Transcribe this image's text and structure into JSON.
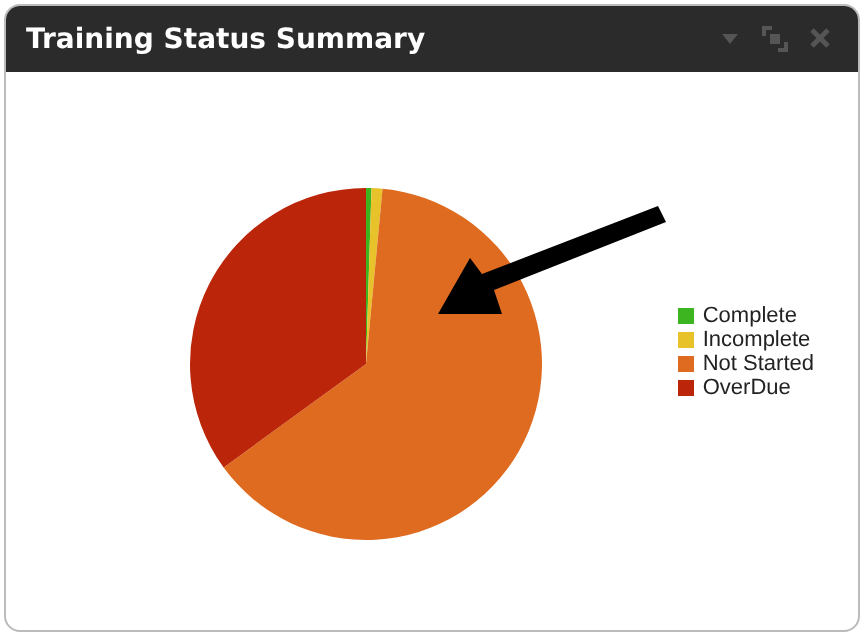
{
  "chart_data": {
    "type": "pie",
    "title": "Training Status Summary",
    "categories": [
      "Complete",
      "Incomplete",
      "Not Started",
      "OverDue"
    ],
    "values": [
      0.5,
      1,
      63.5,
      35
    ],
    "colors": [
      "#3cb521",
      "#e8c22a",
      "#de6b1f",
      "#bb2509"
    ],
    "legend": "right"
  }
}
